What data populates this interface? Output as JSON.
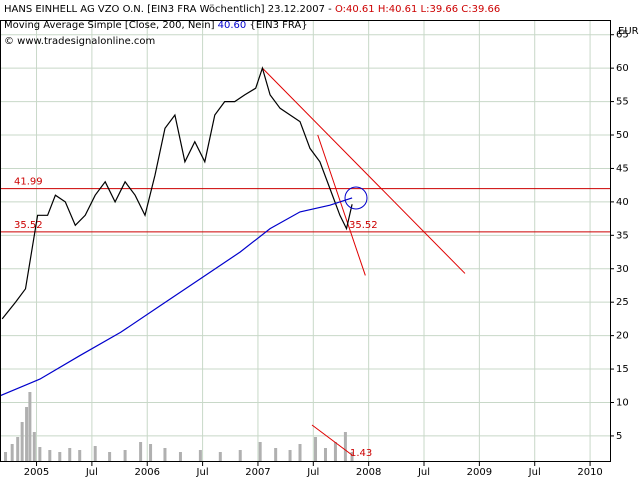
{
  "chart_data": {
    "type": "line",
    "header": {
      "instrument": "HANS EINHELL AG VZO O.N. [EIN3 FRA  Wöchentlich] 23.12.2007 -",
      "ohlc": "O:40.61 H:40.61 L:39.66 C:39.66",
      "indicator": "Moving Average Simple [Close, 200, Nein]",
      "indicator_value": "40.60",
      "indicator_suffix": "{EIN3 FRA}",
      "copyright": "© www.tradesignalonline.com",
      "currency": "EUR"
    },
    "xlim": [
      2004.67,
      2010.18
    ],
    "ylim": [
      1.1,
      67.2
    ],
    "xticks": [
      2005,
      {
        "value": 2005.5,
        "label": "Jul"
      },
      2006,
      {
        "value": 2006.5,
        "label": "Jul"
      },
      2007,
      {
        "value": 2007.5,
        "label": "Jul"
      },
      2008,
      {
        "value": 2008.5,
        "label": "Jul"
      },
      2009,
      {
        "value": 2009.5,
        "label": "Jul"
      },
      2010
    ],
    "yticks": [
      5,
      10,
      15,
      20,
      25,
      30,
      35,
      40,
      45,
      50,
      55,
      60,
      65
    ],
    "grid": true,
    "series": [
      {
        "name": "HANS EINHELL AG VZO O.N.",
        "color": "#000000",
        "x": [
          2004.69,
          2004.81,
          2004.9,
          2004.96,
          2005.01,
          2005.1,
          2005.17,
          2005.26,
          2005.35,
          2005.44,
          2005.53,
          2005.62,
          2005.71,
          2005.8,
          2005.89,
          2005.98,
          2006.07,
          2006.16,
          2006.25,
          2006.34,
          2006.43,
          2006.52,
          2006.61,
          2006.7,
          2006.79,
          2006.88,
          2006.98,
          2007.04,
          2007.11,
          2007.2,
          2007.29,
          2007.38,
          2007.47,
          2007.56,
          2007.65,
          2007.74,
          2007.8,
          2007.85
        ],
        "values": [
          22.5,
          25,
          27,
          33,
          38,
          38,
          41,
          40,
          36.5,
          38,
          41,
          43,
          40,
          43,
          41,
          38,
          44,
          51,
          53,
          46,
          49,
          46,
          53,
          55,
          55,
          56,
          57,
          60,
          56,
          54,
          53,
          52,
          48,
          46,
          42,
          38,
          36,
          39.66
        ]
      },
      {
        "name": "Moving Average Simple",
        "color": "#0000cc",
        "x": [
          2004.67,
          2005.03,
          2005.39,
          2005.76,
          2006.12,
          2006.48,
          2006.84,
          2007.11,
          2007.38,
          2007.65,
          2007.85
        ],
        "values": [
          11,
          13.5,
          17,
          20.5,
          24.5,
          28.5,
          32.5,
          36,
          38.5,
          39.5,
          40.6
        ]
      }
    ],
    "hlines": [
      {
        "value": 41.99,
        "color": "#cc0000"
      },
      {
        "value": 35.52,
        "color": "#cc0000"
      }
    ],
    "trendlines": [
      {
        "x": [
          2007.04,
          2008.87
        ],
        "values": [
          60,
          29.3
        ],
        "color": "#e00000"
      },
      {
        "x": [
          2007.54,
          2007.97
        ],
        "values": [
          50,
          29
        ],
        "color": "#e00000"
      }
    ],
    "volume_annotation": "1.43",
    "volume": {
      "vlim": [
        0,
        100
      ],
      "color": "#b0b0b0",
      "x": [
        2004.72,
        2004.78,
        2004.83,
        2004.87,
        2004.91,
        2004.94,
        2004.98,
        2005.03,
        2005.12,
        2005.21,
        2005.3,
        2005.39,
        2005.53,
        2005.66,
        2005.8,
        2005.94,
        2006.03,
        2006.16,
        2006.3,
        2006.48,
        2006.66,
        2006.84,
        2007.02,
        2007.16,
        2007.29,
        2007.38,
        2007.52,
        2007.61,
        2007.7,
        2007.79,
        2007.85
      ],
      "values": [
        10,
        18,
        25,
        40,
        55,
        70,
        30,
        15,
        12,
        10,
        14,
        12,
        16,
        10,
        12,
        20,
        18,
        14,
        10,
        12,
        10,
        12,
        20,
        14,
        12,
        18,
        25,
        14,
        20,
        30,
        10
      ]
    }
  }
}
